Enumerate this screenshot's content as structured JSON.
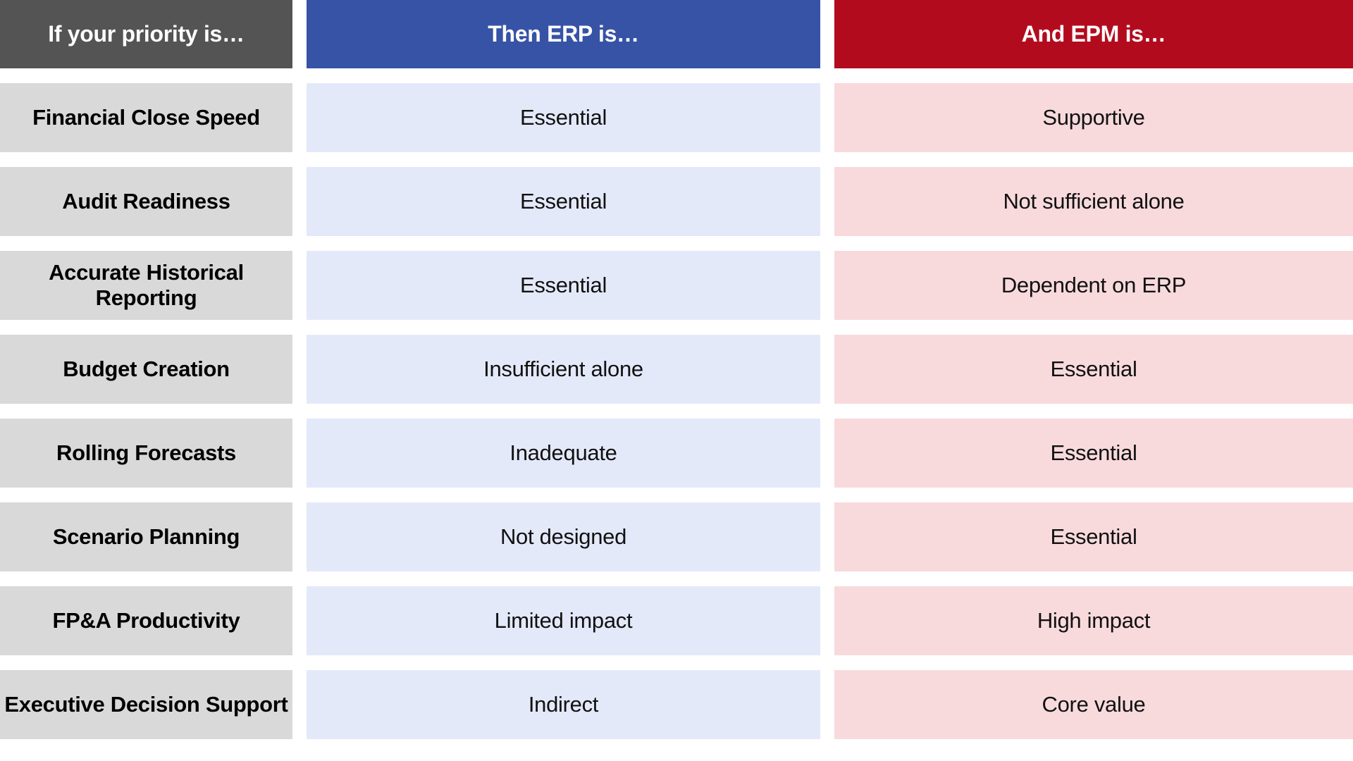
{
  "chart_data": {
    "type": "table",
    "columns": [
      {
        "key": "priority",
        "header": "If your priority is…",
        "header_bg": "#545454",
        "header_text_color": "#ffffff",
        "cell_bg": "#d9d9d9"
      },
      {
        "key": "erp",
        "header": "Then ERP is…",
        "header_bg": "#3653a6",
        "header_text_color": "#ffffff",
        "cell_bg": "#e4e9fa"
      },
      {
        "key": "epm",
        "header": "And EPM is…",
        "header_bg": "#b30b1e",
        "header_text_color": "#ffffff",
        "cell_bg": "#f8dadd"
      }
    ],
    "rows": [
      {
        "priority": "Financial Close Speed",
        "erp": "Essential",
        "epm": "Supportive"
      },
      {
        "priority": "Audit Readiness",
        "erp": "Essential",
        "epm": "Not sufficient alone"
      },
      {
        "priority": "Accurate Historical Reporting",
        "erp": "Essential",
        "epm": "Dependent on ERP"
      },
      {
        "priority": "Budget Creation",
        "erp": "Insufficient alone",
        "epm": "Essential"
      },
      {
        "priority": "Rolling Forecasts",
        "erp": "Inadequate",
        "epm": "Essential"
      },
      {
        "priority": "Scenario Planning",
        "erp": "Not designed",
        "epm": "Essential"
      },
      {
        "priority": "FP&A Productivity",
        "erp": "Limited impact",
        "epm": "High impact"
      },
      {
        "priority": "Executive Decision Support",
        "erp": "Indirect",
        "epm": "Core value"
      }
    ],
    "layout": {
      "grid": "off",
      "legend": "none",
      "background": "#ffffff"
    }
  }
}
